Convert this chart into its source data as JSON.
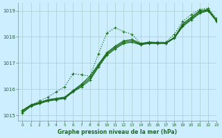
{
  "title": "Graphe pression niveau de la mer (hPa)",
  "bg_color": "#cceeff",
  "grid_color": "#aacccc",
  "line_color": "#1a6b1a",
  "xlim": [
    -0.5,
    23
  ],
  "ylim": [
    1014.8,
    1019.3
  ],
  "yticks": [
    1015,
    1016,
    1017,
    1018,
    1019
  ],
  "xticks": [
    0,
    1,
    2,
    3,
    4,
    5,
    6,
    7,
    8,
    9,
    10,
    11,
    12,
    13,
    14,
    15,
    16,
    17,
    18,
    19,
    20,
    21,
    22,
    23
  ],
  "series1": [
    1015.1,
    1015.35,
    1015.45,
    1015.55,
    1015.6,
    1015.65,
    1015.9,
    1016.1,
    1016.35,
    1016.85,
    1017.3,
    1017.55,
    1017.75,
    1017.8,
    1017.7,
    1017.75,
    1017.75,
    1017.75,
    1017.95,
    1018.4,
    1018.65,
    1018.9,
    1019.0,
    1018.6
  ],
  "series2": [
    1015.2,
    1015.4,
    1015.5,
    1015.6,
    1015.65,
    1015.7,
    1015.95,
    1016.2,
    1016.5,
    1016.95,
    1017.4,
    1017.65,
    1017.85,
    1017.9,
    1017.75,
    1017.8,
    1017.78,
    1017.78,
    1017.98,
    1018.5,
    1018.75,
    1019.0,
    1019.05,
    1018.65
  ],
  "series3": [
    1015.15,
    1015.38,
    1015.47,
    1015.57,
    1015.63,
    1015.67,
    1015.92,
    1016.15,
    1016.42,
    1016.9,
    1017.35,
    1017.6,
    1017.8,
    1017.85,
    1017.72,
    1017.77,
    1017.76,
    1017.76,
    1017.96,
    1018.45,
    1018.7,
    1018.95,
    1019.02,
    1018.62
  ],
  "series_dotted": [
    1015.2,
    1015.4,
    1015.55,
    1015.7,
    1015.9,
    1016.1,
    1016.6,
    1016.55,
    1016.5,
    1017.35,
    1018.15,
    1018.35,
    1018.2,
    1018.1,
    1017.75,
    1017.8,
    1017.8,
    1017.8,
    1018.1,
    1018.6,
    1018.85,
    1019.05,
    1019.1,
    1018.7
  ]
}
